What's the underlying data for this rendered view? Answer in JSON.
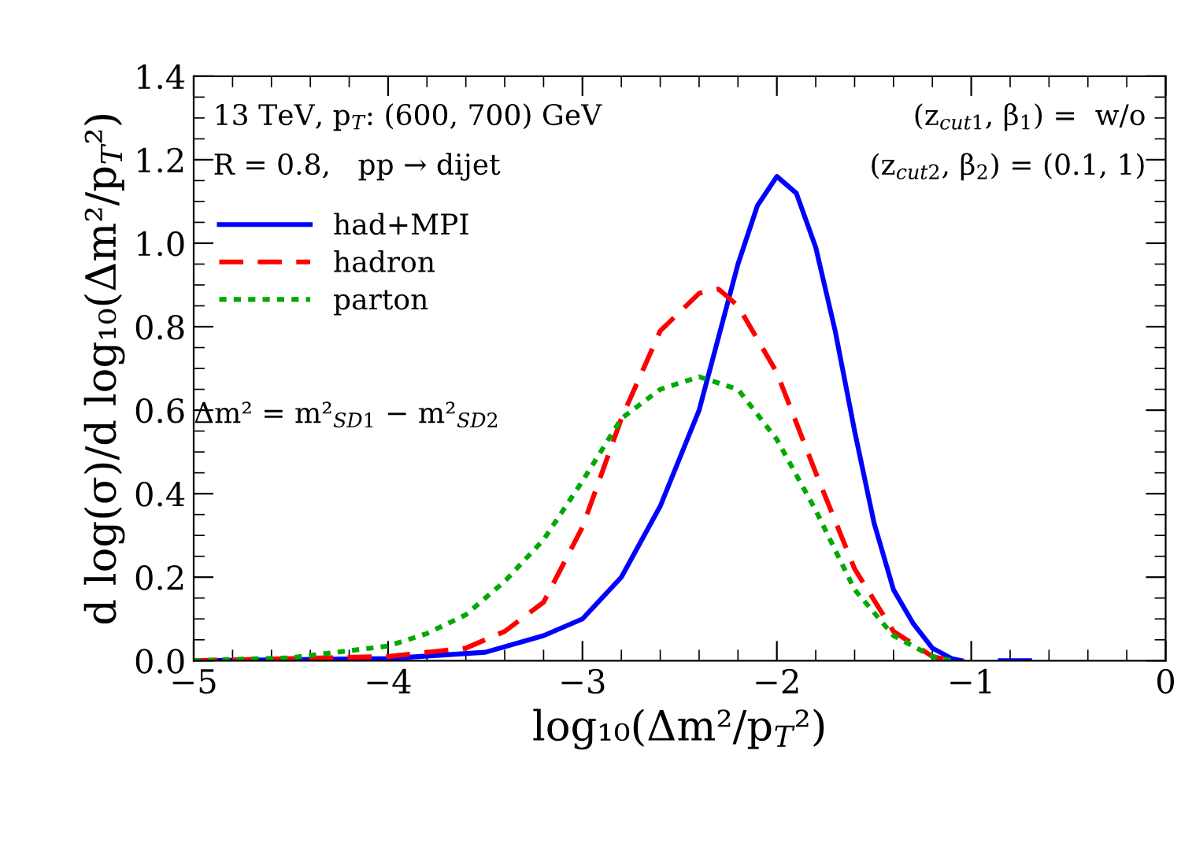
{
  "chart_data": {
    "type": "line",
    "xlabel": "log₁₀(Δm²/p$_{T}$²)",
    "ylabel": "d log(σ)/d log₁₀(Δm²/p$_{T}$²)",
    "xlim": [
      -5,
      0
    ],
    "ylim": [
      0,
      1.4
    ],
    "xticks": [
      {
        "value": -5,
        "label": "−5"
      },
      {
        "value": -4,
        "label": "−4"
      },
      {
        "value": -3,
        "label": "−3"
      },
      {
        "value": -2,
        "label": "−2"
      },
      {
        "value": -1,
        "label": "−1"
      },
      0
    ],
    "yticks": [
      {
        "value": 0,
        "label": "0.0"
      },
      {
        "value": 0.2,
        "label": "0.2"
      },
      {
        "value": 0.4,
        "label": "0.4"
      },
      {
        "value": 0.6,
        "label": "0.6"
      },
      {
        "value": 0.8,
        "label": "0.8"
      },
      {
        "value": 1.0,
        "label": "1.0"
      },
      {
        "value": 1.2,
        "label": "1.2"
      },
      {
        "value": 1.4,
        "label": "1.4"
      }
    ],
    "grid": false,
    "legend": "top left",
    "annotations": [
      "13 TeV, p$_{T}$: (600, 700) GeV",
      "R = 0.8,   pp → dijet",
      "(z$_{cut1}$, β$_{1}$) =  w/o",
      "(z$_{cut2}$, β$_{2}$) = (0.1, 1)",
      "Δm² = m²$_{SD1}$ − m²$_{SD2}$"
    ],
    "series": [
      {
        "name": "had+MPI",
        "color": "#0000ff",
        "line_style": "solid",
        "x": [
          -5,
          -4,
          -3.5,
          -3.2,
          -3.0,
          -2.8,
          -2.6,
          -2.4,
          -2.2,
          -2.1,
          -2.0,
          -1.9,
          -1.8,
          -1.7,
          -1.6,
          -1.5,
          -1.4,
          -1.3,
          -1.2,
          -1.1,
          -1.05,
          -0.9,
          -0.85,
          -0.7
        ],
        "values": [
          0,
          0.005,
          0.02,
          0.06,
          0.1,
          0.2,
          0.37,
          0.6,
          0.95,
          1.09,
          1.16,
          1.12,
          0.99,
          0.79,
          0.55,
          0.33,
          0.17,
          0.09,
          0.03,
          0.005,
          0,
          null,
          0,
          0
        ]
      },
      {
        "name": "hadron",
        "color": "#ff0000",
        "line_style": "dashed",
        "x": [
          -5,
          -4,
          -3.6,
          -3.4,
          -3.2,
          -3.0,
          -2.8,
          -2.6,
          -2.4,
          -2.3,
          -2.2,
          -2.0,
          -1.8,
          -1.6,
          -1.4,
          -1.2,
          -1.1
        ],
        "values": [
          0,
          0.01,
          0.03,
          0.07,
          0.14,
          0.32,
          0.58,
          0.79,
          0.88,
          0.89,
          0.85,
          0.69,
          0.45,
          0.22,
          0.07,
          0.01,
          0
        ]
      },
      {
        "name": "parton",
        "color": "#00aa00",
        "line_style": "dotted",
        "x": [
          -5,
          -4.5,
          -4,
          -3.8,
          -3.6,
          -3.4,
          -3.2,
          -3.0,
          -2.8,
          -2.6,
          -2.4,
          -2.2,
          -2.0,
          -1.8,
          -1.6,
          -1.4,
          -1.2,
          -1.1
        ],
        "values": [
          0,
          0.007,
          0.035,
          0.065,
          0.11,
          0.19,
          0.29,
          0.43,
          0.58,
          0.65,
          0.68,
          0.65,
          0.53,
          0.36,
          0.17,
          0.06,
          0.01,
          0
        ]
      }
    ]
  }
}
